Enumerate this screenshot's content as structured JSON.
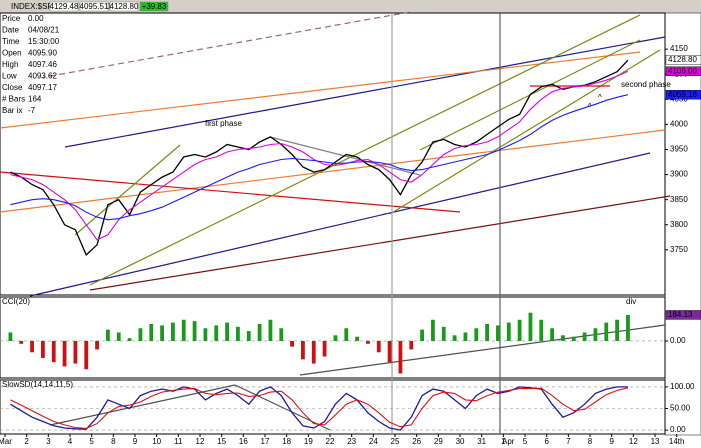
{
  "header": {
    "title": "INDEX:$SPX,60 -- S&P 500 INDEX",
    "quote": [
      "4129.48",
      "4095.51",
      "4128.80",
      "+39.83"
    ]
  },
  "info": {
    "rows": [
      [
        "Price",
        "0.00"
      ],
      [
        "Date",
        "04/08/21"
      ],
      [
        "Time",
        "15:30:00"
      ],
      [
        "Open",
        "4095.90"
      ],
      [
        "High",
        "4097.46"
      ],
      [
        "Low",
        "4093.62"
      ],
      [
        "Close",
        "4097.17"
      ],
      [
        "# Bars",
        "164"
      ],
      [
        "Bar ix",
        "-7"
      ]
    ]
  },
  "chart_data": [
    {
      "type": "line",
      "x": [
        1.25,
        1.75,
        2.25,
        2.75,
        3.25,
        3.75,
        4.25,
        4.75,
        5.25,
        5.75,
        6.25,
        6.75,
        7.25,
        7.75,
        8.25,
        8.75,
        9.25,
        9.75,
        10.25,
        10.75,
        11.25,
        11.75,
        12.25,
        12.75,
        13.25,
        13.75,
        14.25,
        14.75,
        15.25,
        15.75,
        16.25,
        16.75,
        17.25,
        17.75,
        18.25,
        18.75,
        19.25,
        19.75,
        20.25,
        20.75,
        21.25,
        21.75,
        22.25,
        22.75,
        23.25,
        23.75,
        24.25,
        24.75,
        25.25,
        25.75,
        26.25,
        26.75,
        27.25,
        27.75,
        28.25,
        28.75,
        29.25,
        29.75
      ],
      "series": [
        {
          "color": "#000000",
          "values": [
            3905,
            3895,
            3880,
            3870,
            3840,
            3800,
            3790,
            3740,
            3760,
            3840,
            3850,
            3820,
            3865,
            3880,
            3895,
            3905,
            3935,
            3940,
            3935,
            3945,
            3960,
            3955,
            3950,
            3965,
            3975,
            3960,
            3940,
            3915,
            3905,
            3910,
            3925,
            3940,
            3935,
            3920,
            3910,
            3890,
            3860,
            3900,
            3925,
            3965,
            3970,
            3960,
            3955,
            3965,
            3980,
            3995,
            4010,
            4020,
            4060,
            4075,
            4080,
            4070,
            4075,
            4078,
            4085,
            4095,
            4105,
            4128
          ]
        },
        {
          "color": "#e000e0",
          "values": [
            3900,
            3895,
            3890,
            3880,
            3865,
            3850,
            3830,
            3800,
            3770,
            3780,
            3810,
            3830,
            3845,
            3860,
            3875,
            3890,
            3905,
            3920,
            3930,
            3935,
            3945,
            3950,
            3952,
            3955,
            3960,
            3962,
            3955,
            3945,
            3930,
            3920,
            3918,
            3922,
            3928,
            3930,
            3920,
            3905,
            3890,
            3885,
            3900,
            3920,
            3940,
            3952,
            3958,
            3960,
            3965,
            3975,
            3990,
            4005,
            4030,
            4050,
            4065,
            4072,
            4075,
            4077,
            4082,
            4088,
            4096,
            4106
          ]
        },
        {
          "color": "#1a1aff",
          "values": [
            3840,
            3845,
            3850,
            3852,
            3850,
            3845,
            3838,
            3825,
            3815,
            3810,
            3812,
            3818,
            3822,
            3828,
            3835,
            3845,
            3855,
            3865,
            3875,
            3885,
            3895,
            3905,
            3912,
            3920,
            3925,
            3930,
            3932,
            3930,
            3928,
            3925,
            3922,
            3923,
            3925,
            3926,
            3924,
            3920,
            3912,
            3908,
            3910,
            3915,
            3920,
            3925,
            3930,
            3935,
            3940,
            3948,
            3958,
            3968,
            3980,
            3995,
            4008,
            4018,
            4026,
            4033,
            4040,
            4048,
            4054,
            4059.18
          ]
        }
      ],
      "xlim": [
        0.77,
        31.46
      ],
      "ylim": [
        3660,
        4222
      ],
      "yticks": [
        3750,
        3800,
        3850,
        3900,
        3950,
        4000,
        4050,
        4100,
        4150
      ],
      "markers": [
        {
          "value": 4128.8,
          "label": "4128.80",
          "color": "#ffffff"
        },
        {
          "value": 4106.0,
          "label": "4106.00",
          "color": "#e000e0"
        },
        {
          "value": 4059.18,
          "label": "4059.18",
          "color": "#1a1aff"
        }
      ],
      "annotations": [
        {
          "text": "first phase",
          "color": "#2a8a2a"
        },
        {
          "text": "second phase",
          "color": "#8a8a10"
        },
        {
          "text": "^",
          "color": "#e01010"
        },
        {
          "text": "^",
          "color": "#1a1aff"
        }
      ]
    },
    {
      "type": "bar",
      "title": "CCI(20)",
      "x": [
        1.25,
        1.75,
        2.25,
        2.75,
        3.25,
        3.75,
        4.25,
        4.75,
        5.25,
        5.75,
        6.25,
        6.75,
        7.25,
        7.75,
        8.25,
        8.75,
        9.25,
        9.75,
        10.25,
        10.75,
        11.25,
        11.75,
        12.25,
        12.75,
        13.25,
        13.75,
        14.25,
        14.75,
        15.25,
        15.75,
        16.25,
        16.75,
        17.25,
        17.75,
        18.25,
        18.75,
        19.25,
        19.75,
        20.25,
        20.75,
        21.25,
        21.75,
        22.25,
        22.75,
        23.25,
        23.75,
        24.25,
        24.75,
        25.25,
        25.75,
        26.25,
        26.75,
        27.25,
        27.75,
        28.25,
        28.75,
        29.25,
        29.75
      ],
      "values": [
        60,
        -20,
        -80,
        -120,
        -150,
        -180,
        -160,
        -200,
        -60,
        80,
        60,
        20,
        90,
        120,
        110,
        130,
        150,
        140,
        90,
        110,
        130,
        100,
        70,
        120,
        150,
        90,
        -40,
        -130,
        -160,
        -110,
        40,
        90,
        30,
        -20,
        -80,
        -150,
        -230,
        -60,
        80,
        150,
        100,
        40,
        60,
        90,
        120,
        110,
        130,
        150,
        200,
        150,
        90,
        40,
        30,
        60,
        90,
        130,
        150,
        184.13
      ],
      "color_up": "#1a9a1a",
      "color_down": "#d01010",
      "xlim": [
        0.77,
        31.46
      ],
      "ylim": [
        -262,
        311
      ],
      "yticks": [
        {
          "value": 0,
          "label": "0.00"
        }
      ],
      "markers": [
        {
          "value": 184.13,
          "label": "184.13",
          "color": "#7a2a9a"
        }
      ],
      "annotations": [
        {
          "text": "div",
          "color": "#e01010"
        }
      ]
    },
    {
      "type": "line",
      "title": "SlowSD(14,14,11,5)",
      "x": [
        1.25,
        1.75,
        2.25,
        2.75,
        3.25,
        3.75,
        4.25,
        4.75,
        5.25,
        5.75,
        6.25,
        6.75,
        7.25,
        7.75,
        8.25,
        8.75,
        9.25,
        9.75,
        10.25,
        10.75,
        11.25,
        11.75,
        12.25,
        12.75,
        13.25,
        13.75,
        14.25,
        14.75,
        15.25,
        15.75,
        16.25,
        16.75,
        17.25,
        17.75,
        18.25,
        18.75,
        19.25,
        19.75,
        20.25,
        20.75,
        21.25,
        21.75,
        22.25,
        22.75,
        23.25,
        23.75,
        24.25,
        24.75,
        25.25,
        25.75,
        26.25,
        26.75,
        27.25,
        27.75,
        28.25,
        28.75,
        29.25,
        29.75
      ],
      "series": [
        {
          "color": "#1a1aa0",
          "values": [
            60,
            45,
            30,
            20,
            10,
            5,
            3,
            2,
            30,
            70,
            60,
            50,
            80,
            90,
            95,
            90,
            100,
            95,
            70,
            85,
            95,
            80,
            60,
            90,
            100,
            80,
            40,
            10,
            5,
            20,
            60,
            85,
            70,
            40,
            20,
            5,
            0,
            30,
            80,
            95,
            90,
            70,
            50,
            80,
            95,
            85,
            90,
            100,
            98,
            95,
            60,
            30,
            40,
            60,
            85,
            95,
            100,
            100
          ]
        },
        {
          "color": "#e01010",
          "values": [
            70,
            58,
            45,
            32,
            20,
            12,
            6,
            4,
            15,
            40,
            55,
            58,
            65,
            78,
            88,
            92,
            95,
            96,
            85,
            82,
            85,
            86,
            78,
            80,
            88,
            90,
            70,
            40,
            15,
            12,
            35,
            60,
            70,
            60,
            40,
            18,
            8,
            12,
            50,
            80,
            88,
            85,
            70,
            68,
            80,
            88,
            92,
            96,
            96,
            97,
            80,
            60,
            45,
            48,
            65,
            82,
            92,
            98
          ]
        }
      ],
      "xlim": [
        0.77,
        31.46
      ],
      "ylim": [
        -9,
        116
      ],
      "yticks": [
        {
          "value": 100,
          "label": "100.00"
        },
        {
          "value": 50,
          "label": "50.00"
        },
        {
          "value": 0,
          "label": "0.00"
        }
      ],
      "xticks": [
        {
          "value": 1,
          "label": "Mar"
        },
        2,
        3,
        4,
        {
          "value": 5,
          "label": "5"
        },
        {
          "value": 6,
          "label": "8"
        },
        {
          "value": 7,
          "label": "9"
        },
        {
          "value": 8,
          "label": "10"
        },
        {
          "value": 9,
          "label": "11"
        },
        {
          "value": 10,
          "label": "12"
        },
        {
          "value": 11,
          "label": "15"
        },
        {
          "value": 12,
          "label": "16"
        },
        {
          "value": 13,
          "label": "17"
        },
        {
          "value": 14,
          "label": "18"
        },
        {
          "value": 15,
          "label": "19"
        },
        {
          "value": 16,
          "label": "22"
        },
        {
          "value": 17,
          "label": "23"
        },
        {
          "value": 18,
          "label": "24"
        },
        {
          "value": 19,
          "label": "25"
        },
        {
          "value": 20,
          "label": "26"
        },
        {
          "value": 21,
          "label": "29"
        },
        {
          "value": 22,
          "label": "30"
        },
        {
          "value": 23,
          "label": "31"
        },
        {
          "value": 24,
          "label": "1"
        },
        {
          "value": 25,
          "label": "5"
        },
        {
          "value": 26,
          "label": "6"
        },
        {
          "value": 27,
          "label": "7"
        },
        {
          "value": 28,
          "label": "8"
        },
        {
          "value": 29,
          "label": "9"
        },
        {
          "value": 30,
          "label": "12"
        },
        {
          "value": 31,
          "label": "13"
        },
        {
          "value": 32,
          "label": "14th"
        }
      ],
      "annotations": [
        {
          "text": "Apr",
          "color": "#000000"
        }
      ]
    }
  ]
}
